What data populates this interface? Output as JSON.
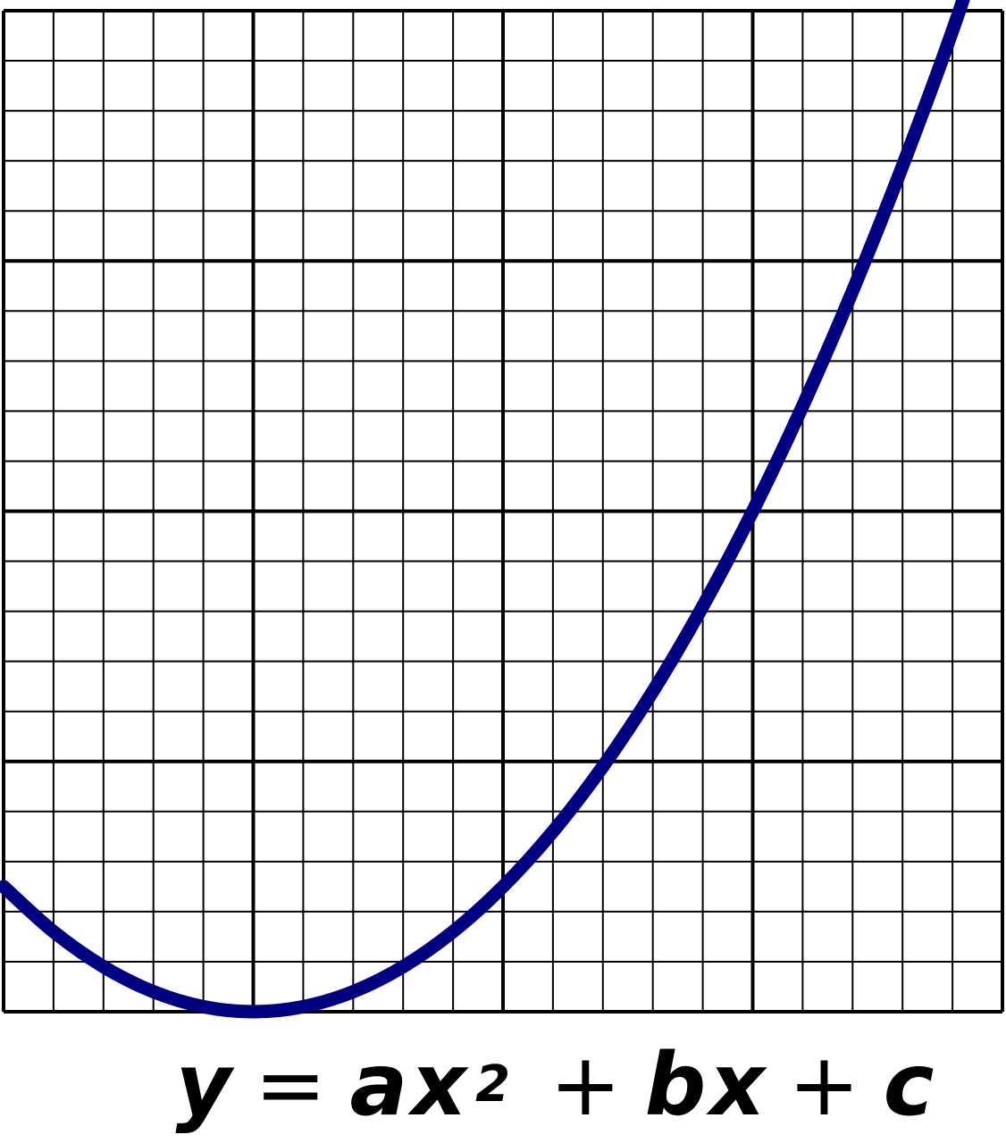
{
  "chart_data": {
    "type": "line",
    "title": "",
    "xlabel": "",
    "ylabel": "",
    "xlim": [
      0,
      20
    ],
    "ylim": [
      0,
      20
    ],
    "grid": true,
    "major_grid_every": 5,
    "minor_grid_every": 1,
    "series": [
      {
        "color": "#000080",
        "x": [
          0,
          1,
          2,
          3,
          4,
          5,
          6,
          7,
          8,
          9,
          10,
          11,
          12,
          13,
          14,
          15,
          16,
          17,
          18,
          19,
          19.8
        ],
        "y": [
          2.5,
          1.6,
          0.9,
          0.4,
          0.1,
          0.0,
          0.1,
          0.4,
          0.9,
          1.6,
          2.5,
          3.6,
          4.9,
          6.4,
          8.1,
          10.0,
          12.1,
          14.4,
          16.9,
          19.6,
          22.0
        ]
      }
    ]
  },
  "formula": {
    "y": "y",
    "eq": "=",
    "ax": "ax",
    "exp": "2",
    "plus1": "+",
    "bx": "bx",
    "plus2": "+",
    "c": "c"
  },
  "colors": {
    "curve": "#000080",
    "grid": "#000000",
    "background": "#ffffff"
  }
}
